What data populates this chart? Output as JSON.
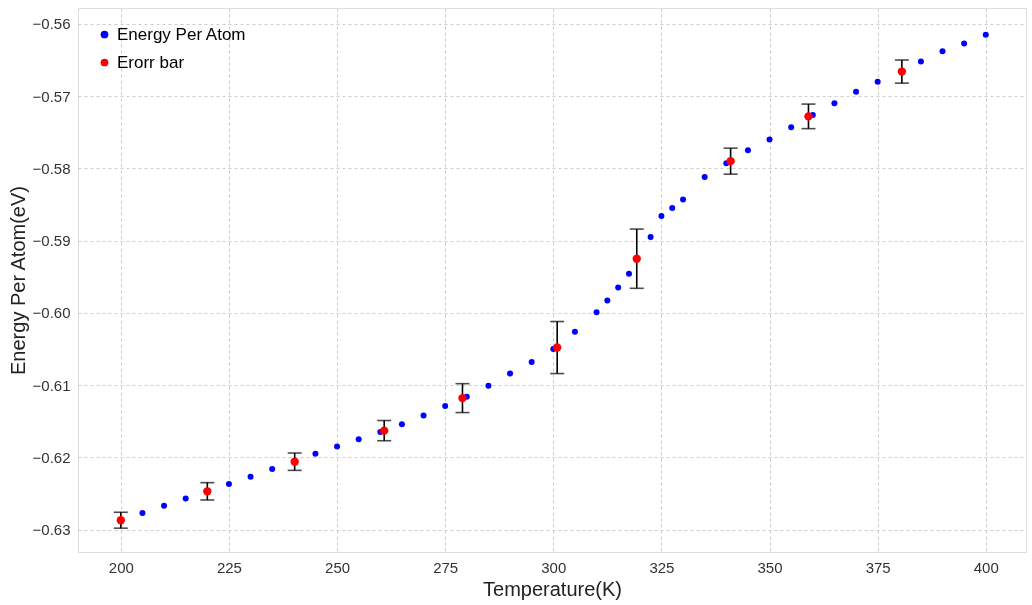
{
  "chart_data": {
    "type": "scatter",
    "xlabel": "Temperature(K)",
    "ylabel": "Energy Per Atom(eV)",
    "xlim": [
      190.1,
      409.3
    ],
    "ylim": [
      -0.6331,
      -0.5578
    ],
    "xticks": [
      200,
      225,
      250,
      275,
      300,
      325,
      350,
      375,
      400
    ],
    "yticks": [
      {
        "value": -0.63,
        "label": "−0.63"
      },
      {
        "value": -0.62,
        "label": "−0.62"
      },
      {
        "value": -0.61,
        "label": "−0.61"
      },
      {
        "value": -0.6,
        "label": "−0.60"
      },
      {
        "value": -0.59,
        "label": "−0.59"
      },
      {
        "value": -0.58,
        "label": "−0.58"
      },
      {
        "value": -0.57,
        "label": "−0.57"
      },
      {
        "value": -0.56,
        "label": "−0.56"
      }
    ],
    "grid": true,
    "legend": "top left",
    "marker": "circle",
    "series": [
      {
        "name": "Energy Per Atom",
        "type": "scatter",
        "color": "#0000ff",
        "x": [
          205,
          210,
          215,
          225,
          230,
          235,
          245,
          250,
          255,
          260,
          265,
          270,
          275,
          280,
          285,
          290,
          295,
          300,
          305,
          310,
          312.5,
          315,
          317.5,
          322.5,
          325,
          327.5,
          330,
          335,
          340,
          345,
          350,
          355,
          360,
          365,
          370,
          375,
          385,
          390,
          395,
          400
        ],
        "values": [
          -0.6277,
          -0.6267,
          -0.6257,
          -0.6237,
          -0.6227,
          -0.6216,
          -0.6195,
          -0.6185,
          -0.6175,
          -0.6165,
          -0.6154,
          -0.6142,
          -0.6129,
          -0.6116,
          -0.6101,
          -0.6084,
          -0.6068,
          -0.605,
          -0.6026,
          -0.5999,
          -0.5983,
          -0.5965,
          -0.5946,
          -0.5895,
          -0.5866,
          -0.5855,
          -0.5843,
          -0.5812,
          -0.5793,
          -0.5775,
          -0.576,
          -0.5743,
          -0.5726,
          -0.571,
          -0.5694,
          -0.568,
          -0.5652,
          -0.5638,
          -0.5627,
          -0.5615
        ]
      },
      {
        "name": "Erorr bar",
        "type": "scatter",
        "color": "#ff0000",
        "x": [
          200,
          220,
          240.2,
          260.9,
          279,
          300.9,
          319.3,
          341,
          359,
          380.6
        ],
        "values": [
          -0.6287,
          -0.6247,
          -0.6206,
          -0.6163,
          -0.6118,
          -0.6048,
          -0.5925,
          -0.579,
          -0.5728,
          -0.5666
        ],
        "errors": [
          0.0011,
          0.0012,
          0.0012,
          0.0014,
          0.002,
          0.0036,
          0.0041,
          0.0018,
          0.0017,
          0.0016
        ]
      }
    ]
  }
}
